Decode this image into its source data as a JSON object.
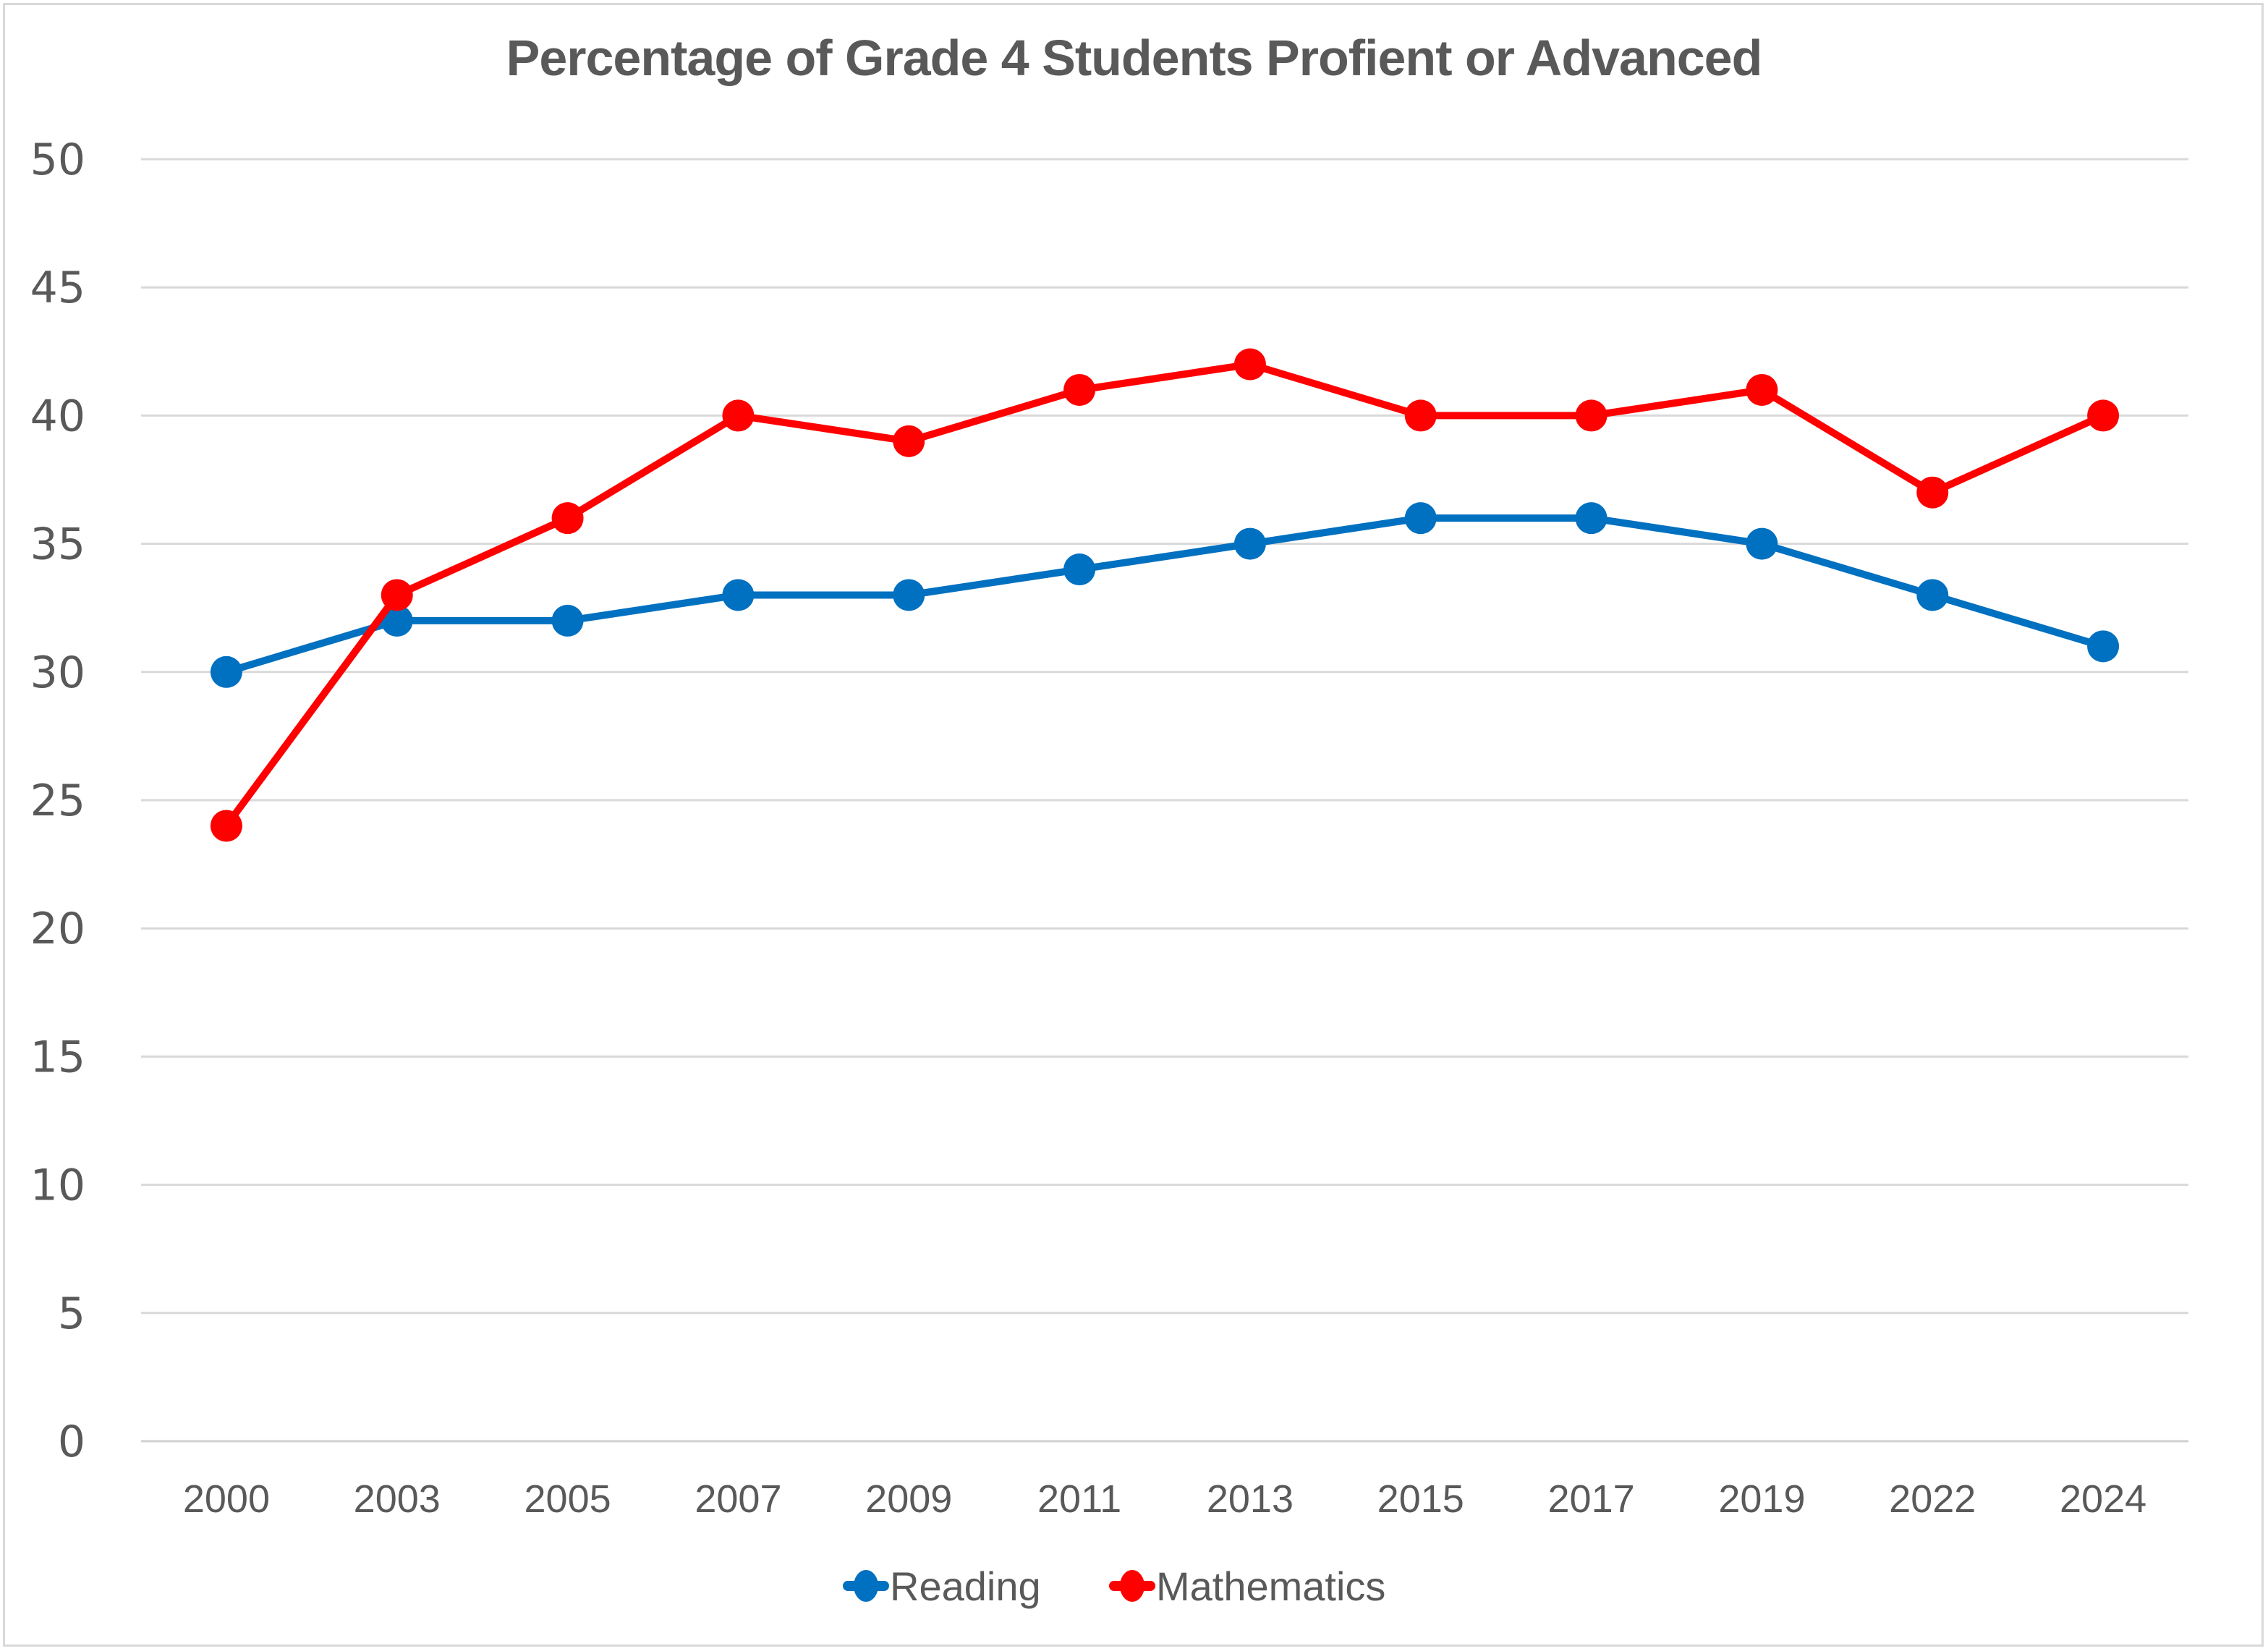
{
  "chart_data": {
    "type": "line",
    "title": "Percentage of Grade 4 Students Profient or Advanced",
    "xlabel": "",
    "ylabel": "",
    "categories": [
      "2000",
      "2003",
      "2005",
      "2007",
      "2009",
      "2011",
      "2013",
      "2015",
      "2017",
      "2019",
      "2022",
      "2024"
    ],
    "ylim": [
      0,
      50
    ],
    "yticks": [
      0,
      5,
      10,
      15,
      20,
      25,
      30,
      35,
      40,
      45,
      50
    ],
    "grid": true,
    "legend_position": "bottom-center",
    "series": [
      {
        "name": "Reading",
        "color": "#0070c0",
        "marker": "circle",
        "values": [
          30,
          32,
          32,
          33,
          33,
          34,
          35,
          36,
          36,
          35,
          33,
          31
        ]
      },
      {
        "name": "Mathematics",
        "color": "#ff0000",
        "marker": "circle",
        "values": [
          24,
          33,
          36,
          40,
          39,
          41,
          42,
          40,
          40,
          41,
          37,
          40
        ]
      }
    ]
  }
}
